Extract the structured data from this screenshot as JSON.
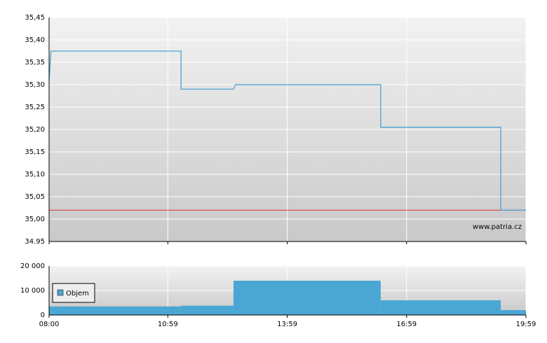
{
  "chart_data": [
    {
      "type": "line",
      "x": [
        "08:00",
        "08:03",
        "11:19",
        "11:19",
        "12:38",
        "12:41",
        "16:20",
        "16:20",
        "19:21",
        "19:21",
        "19:59"
      ],
      "values": [
        35.31,
        35.375,
        35.375,
        35.29,
        35.29,
        35.3,
        35.3,
        35.205,
        35.205,
        35.02,
        35.02
      ],
      "color": "#4aa3d3",
      "reference_line": {
        "value": 35.02,
        "color": "#e03030"
      },
      "xlim": [
        "08:00",
        "19:59"
      ],
      "ylim": [
        34.95,
        35.45
      ],
      "yticks": [
        {
          "value": 34.95,
          "label": "34.95"
        },
        {
          "value": 35.0,
          "label": "35,00"
        },
        {
          "value": 35.05,
          "label": "35,05"
        },
        {
          "value": 35.1,
          "label": "35,10"
        },
        {
          "value": 35.15,
          "label": "35,15"
        },
        {
          "value": 35.2,
          "label": "35,20"
        },
        {
          "value": 35.25,
          "label": "35,25"
        },
        {
          "value": 35.3,
          "label": "35,30"
        },
        {
          "value": 35.35,
          "label": "35,35"
        },
        {
          "value": 35.4,
          "label": "35,40"
        },
        {
          "value": 35.45,
          "label": "35,45"
        }
      ],
      "grid": true,
      "annotation": "www.patria.cz"
    },
    {
      "type": "histogram",
      "bins": [
        "08:00",
        "11:19",
        "12:38",
        "16:20",
        "19:21",
        "19:59"
      ],
      "series": [
        {
          "name": "Objem",
          "color": "#4aa7d3",
          "values": [
            3500,
            3800,
            14000,
            6000,
            2000
          ]
        }
      ],
      "xlim": [
        "08:00",
        "19:59"
      ],
      "xticks": [
        "08:00",
        "10:59",
        "13:59",
        "16:59",
        "19:59"
      ],
      "ylim": [
        0,
        20000
      ],
      "yticks": [
        {
          "value": 0,
          "label": "0"
        },
        {
          "value": 10000,
          "label": "10 000"
        },
        {
          "value": 20000,
          "label": "20 000"
        }
      ],
      "grid": true,
      "legend": "upper left"
    }
  ]
}
